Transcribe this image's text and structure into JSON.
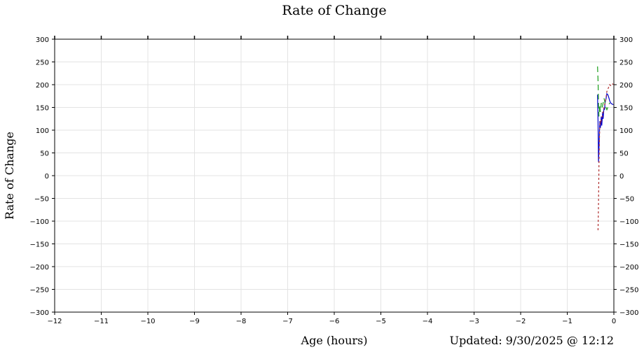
{
  "chart_data": {
    "type": "line",
    "title": "Rate of Change",
    "xlabel": "Age (hours)",
    "ylabel": "Rate of Change",
    "xlim": [
      -12,
      0
    ],
    "ylim": [
      -300,
      300
    ],
    "x_ticks": [
      -12,
      -11,
      -10,
      -9,
      -8,
      -7,
      -6,
      -5,
      -4,
      -3,
      -2,
      -1,
      0
    ],
    "y_ticks": [
      300,
      250,
      200,
      150,
      100,
      50,
      0,
      -50,
      -100,
      -150,
      -200,
      -250,
      -300
    ],
    "x_tick_labels": [
      "−12",
      "−11",
      "−10",
      "−9",
      "−8",
      "−7",
      "−6",
      "−5",
      "−4",
      "−3",
      "−2",
      "−1",
      "0"
    ],
    "y_tick_labels": [
      "300",
      "250",
      "200",
      "150",
      "100",
      "50",
      "0",
      "−50",
      "−100",
      "−150",
      "−200",
      "−250",
      "−300"
    ],
    "grid": true,
    "series": [
      {
        "color": "#0000cc",
        "dash": "solid",
        "x": [
          -0.35,
          -0.34,
          -0.33,
          -0.32,
          -0.31,
          -0.3,
          -0.29,
          -0.28,
          -0.27,
          -0.26,
          -0.25,
          -0.24,
          -0.23,
          -0.22,
          -0.21,
          -0.2,
          -0.19,
          -0.17,
          -0.15,
          -0.13,
          -0.11,
          -0.09,
          -0.07,
          -0.05,
          -0.03,
          -0.01
        ],
        "y": [
          178,
          120,
          30,
          55,
          95,
          120,
          105,
          115,
          130,
          110,
          125,
          140,
          125,
          140,
          150,
          145,
          160,
          168,
          180,
          178,
          172,
          165,
          160,
          158,
          157,
          156
        ]
      },
      {
        "color": "#1a9e1a",
        "dash": "long",
        "x": [
          -0.35,
          -0.34,
          -0.33,
          -0.32,
          -0.31,
          -0.3,
          -0.29,
          -0.28,
          -0.27,
          -0.25,
          -0.23,
          -0.21,
          -0.19,
          -0.17,
          -0.15,
          -0.13,
          -0.11,
          -0.09
        ],
        "y": [
          240,
          210,
          160,
          130,
          145,
          155,
          140,
          150,
          160,
          150,
          160,
          170,
          160,
          150,
          145,
          150,
          155,
          160
        ]
      },
      {
        "color": "#b03030",
        "dash": "short",
        "x": [
          -0.34,
          -0.33,
          -0.32,
          -0.31,
          -0.3,
          -0.29,
          -0.28,
          -0.27,
          -0.25,
          -0.23,
          -0.21,
          -0.19,
          -0.17,
          -0.15,
          -0.13,
          -0.11,
          -0.09,
          -0.07,
          -0.05,
          -0.03,
          -0.01
        ],
        "y": [
          -120,
          -60,
          20,
          80,
          110,
          120,
          115,
          125,
          130,
          140,
          150,
          160,
          170,
          185,
          190,
          195,
          200,
          198,
          200,
          202,
          200
        ]
      }
    ]
  },
  "footer": {
    "updated": "Updated: 9/30/2025 @ 12:12"
  }
}
